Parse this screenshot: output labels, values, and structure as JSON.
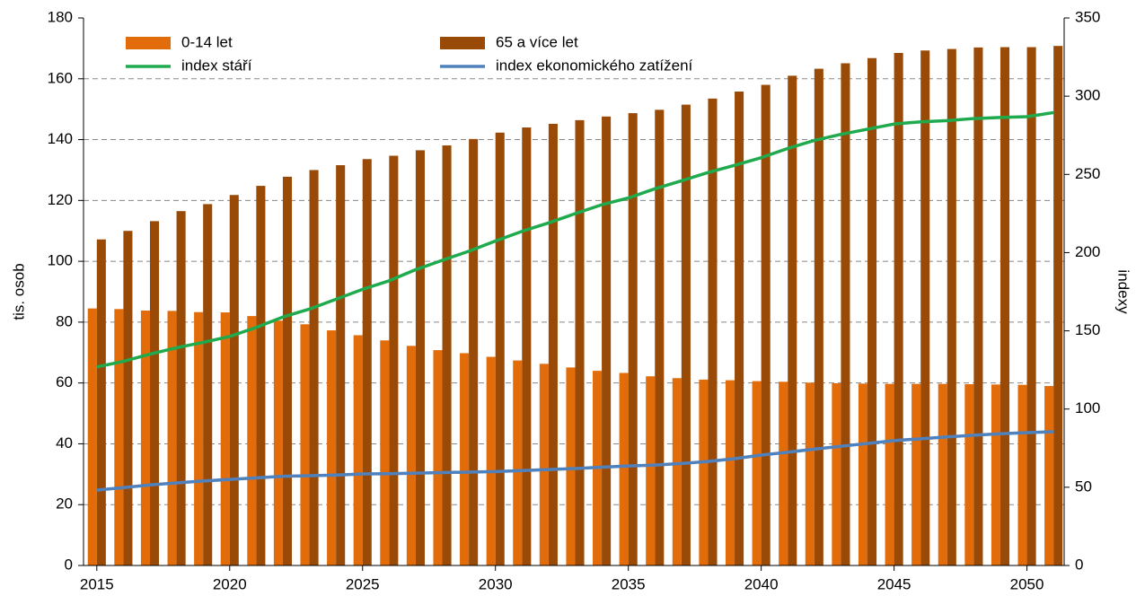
{
  "chart_data": {
    "type": "bar_line",
    "x": [
      2015,
      2016,
      2017,
      2018,
      2019,
      2020,
      2021,
      2022,
      2023,
      2024,
      2025,
      2026,
      2027,
      2028,
      2029,
      2030,
      2031,
      2032,
      2033,
      2034,
      2035,
      2036,
      2037,
      2038,
      2039,
      2040,
      2041,
      2042,
      2043,
      2044,
      2045,
      2046,
      2047,
      2048,
      2049,
      2050,
      2051
    ],
    "xlim": [
      2014.5,
      2051.4
    ],
    "xticks": [
      2015,
      2020,
      2025,
      2030,
      2035,
      2040,
      2045,
      2050
    ],
    "y_label": "tis. osob",
    "y2_label": "indexy",
    "ylim": [
      0,
      180
    ],
    "yticks": [
      0,
      20,
      40,
      60,
      80,
      100,
      120,
      140,
      160,
      180
    ],
    "y2lim": [
      0,
      350
    ],
    "y2ticks": [
      0,
      50,
      100,
      150,
      200,
      250,
      300,
      350
    ],
    "grid": true,
    "series": [
      {
        "name": "0-14 let",
        "kind": "bar",
        "color": "#e36c0a",
        "values": [
          84.5,
          84.3,
          83.8,
          83.7,
          83.3,
          83.2,
          82,
          80.5,
          79.3,
          77.3,
          75.7,
          74,
          72.2,
          70.8,
          69.8,
          68.6,
          67.4,
          66.3,
          65.1,
          64,
          63.3,
          62.2,
          61.6,
          61.1,
          60.9,
          60.6,
          60.4,
          60.1,
          59.9,
          59.8,
          59.7,
          59.7,
          59.7,
          59.6,
          59.5,
          59.4,
          59
        ]
      },
      {
        "name": "65 a více let",
        "kind": "bar",
        "color": "#9a4a07",
        "values": [
          107.2,
          110,
          113.2,
          116.5,
          118.8,
          121.8,
          124.8,
          127.8,
          130,
          131.6,
          133.6,
          134.7,
          136.5,
          138.1,
          140.2,
          142.3,
          144,
          145.2,
          146.4,
          147.6,
          148.7,
          149.8,
          151.5,
          153.5,
          155.8,
          158,
          161,
          163.3,
          165.1,
          166.8,
          168.5,
          169.3,
          169.8,
          170.3,
          170.4,
          170.4,
          170.8
        ]
      },
      {
        "name": "index stáří",
        "kind": "line",
        "axis": "y2",
        "color": "#1faa4e",
        "values": [
          126.9,
          130.5,
          135.1,
          139.2,
          142.6,
          146.4,
          152.2,
          158.8,
          163.9,
          170.2,
          176.5,
          182,
          189.1,
          195.1,
          200.9,
          207.4,
          213.6,
          219,
          224.9,
          230.6,
          234.9,
          240.8,
          245.9,
          251.2,
          255.8,
          260.7,
          266.6,
          271.7,
          275.6,
          278.9,
          282.2,
          283.6,
          284.4,
          285.7,
          286.4,
          286.9,
          289.5
        ]
      },
      {
        "name": "index ekonomického zatížení",
        "kind": "line",
        "axis": "y2",
        "color": "#4f81bd",
        "values": [
          48.2,
          49.8,
          51.5,
          52.8,
          54,
          55,
          56,
          57,
          57.4,
          57.8,
          58.5,
          58.7,
          59,
          59.4,
          59.7,
          60,
          60.7,
          61.3,
          62,
          62.8,
          63.6,
          64.2,
          65.2,
          66.5,
          68.3,
          70.6,
          72.4,
          74.4,
          76.2,
          78,
          79.8,
          81,
          82.2,
          83.3,
          84.2,
          84.9,
          85.5
        ]
      }
    ]
  }
}
